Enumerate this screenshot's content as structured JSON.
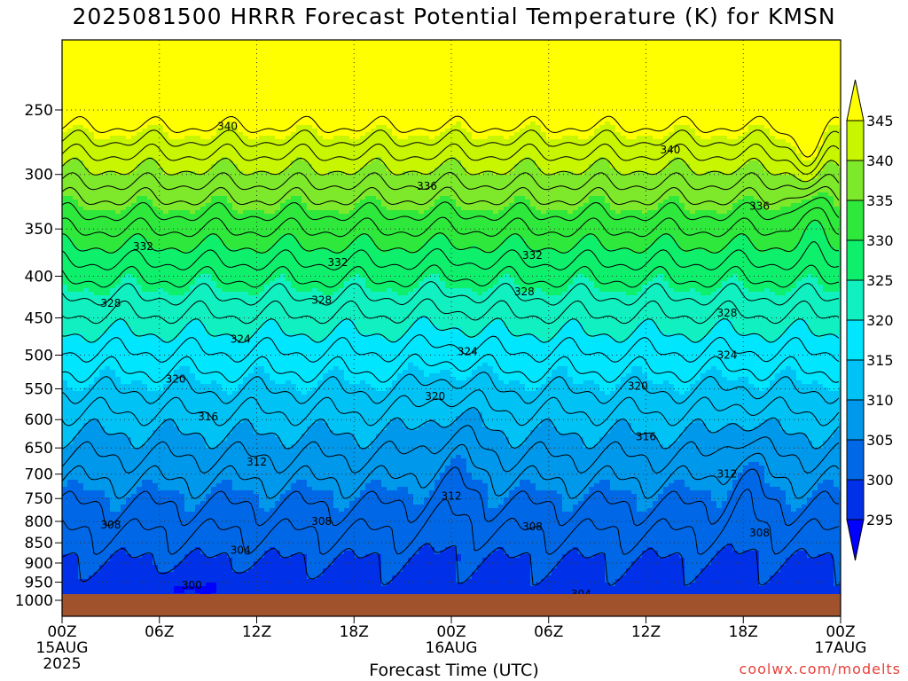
{
  "chart_data": {
    "type": "heatmap",
    "title": "2025081500 HRRR Forecast Potential Temperature (K) for KMSN",
    "xlabel": "Forecast Time (UTC)",
    "ylabel": "",
    "credit": "coolwx.com/modelts",
    "y_axis": {
      "scale": "log",
      "direction": "pressure decreasing upward",
      "range": [
        1000,
        200
      ],
      "ticks": [
        250,
        300,
        350,
        400,
        450,
        500,
        550,
        600,
        650,
        700,
        750,
        800,
        850,
        900,
        950,
        1000
      ]
    },
    "x_axis": {
      "range_hours": [
        0,
        48
      ],
      "ticks": [
        {
          "hour": 0,
          "lines": [
            "00Z",
            "15AUG",
            "2025"
          ]
        },
        {
          "hour": 6,
          "lines": [
            "06Z"
          ]
        },
        {
          "hour": 12,
          "lines": [
            "12Z"
          ]
        },
        {
          "hour": 18,
          "lines": [
            "18Z"
          ]
        },
        {
          "hour": 24,
          "lines": [
            "00Z",
            "16AUG"
          ]
        },
        {
          "hour": 30,
          "lines": [
            "06Z"
          ]
        },
        {
          "hour": 36,
          "lines": [
            "12Z"
          ]
        },
        {
          "hour": 42,
          "lines": [
            "18Z"
          ]
        },
        {
          "hour": 48,
          "lines": [
            "00Z",
            "17AUG"
          ]
        }
      ]
    },
    "colorbar": {
      "labels": [
        345,
        340,
        335,
        330,
        325,
        320,
        315,
        310,
        305,
        300,
        295
      ],
      "bands": [
        {
          "min": 345,
          "color": "#ffff00"
        },
        {
          "min": 340,
          "max": 345,
          "color": "#c8f500"
        },
        {
          "min": 335,
          "max": 340,
          "color": "#7ee82a"
        },
        {
          "min": 330,
          "max": 335,
          "color": "#2ee83c"
        },
        {
          "min": 325,
          "max": 330,
          "color": "#0ef06c"
        },
        {
          "min": 320,
          "max": 325,
          "color": "#10f0c0"
        },
        {
          "min": 315,
          "max": 320,
          "color": "#00e6ff"
        },
        {
          "min": 310,
          "max": 315,
          "color": "#00c2f5"
        },
        {
          "min": 305,
          "max": 310,
          "color": "#0098ea"
        },
        {
          "min": 300,
          "max": 305,
          "color": "#0068e6"
        },
        {
          "min": 295,
          "max": 300,
          "color": "#0030e8"
        },
        {
          "max": 295,
          "color": "#0000ff"
        }
      ]
    },
    "contour_levels": [
      300,
      302,
      304,
      306,
      308,
      310,
      312,
      314,
      316,
      318,
      320,
      322,
      324,
      326,
      328,
      330,
      332,
      334,
      336,
      338,
      340,
      342,
      344,
      346
    ],
    "contour_labels": [
      {
        "value": 340,
        "hour": 10.2,
        "p": 262
      },
      {
        "value": 340,
        "hour": 37.5,
        "p": 280
      },
      {
        "value": 336,
        "hour": 22.5,
        "p": 310
      },
      {
        "value": 336,
        "hour": 43.0,
        "p": 328
      },
      {
        "value": 332,
        "hour": 5.0,
        "p": 368
      },
      {
        "value": 332,
        "hour": 17.0,
        "p": 385
      },
      {
        "value": 332,
        "hour": 29.0,
        "p": 377
      },
      {
        "value": 328,
        "hour": 3.0,
        "p": 432
      },
      {
        "value": 328,
        "hour": 16.0,
        "p": 428
      },
      {
        "value": 328,
        "hour": 28.5,
        "p": 418
      },
      {
        "value": 328,
        "hour": 41.0,
        "p": 444
      },
      {
        "value": 324,
        "hour": 11.0,
        "p": 478
      },
      {
        "value": 324,
        "hour": 25.0,
        "p": 495
      },
      {
        "value": 324,
        "hour": 41.0,
        "p": 500
      },
      {
        "value": 320,
        "hour": 7.0,
        "p": 535
      },
      {
        "value": 320,
        "hour": 23.0,
        "p": 562
      },
      {
        "value": 320,
        "hour": 35.5,
        "p": 546
      },
      {
        "value": 316,
        "hour": 9.0,
        "p": 595
      },
      {
        "value": 316,
        "hour": 36.0,
        "p": 630
      },
      {
        "value": 312,
        "hour": 12.0,
        "p": 676
      },
      {
        "value": 312,
        "hour": 41.0,
        "p": 700
      },
      {
        "value": 312,
        "hour": 24.0,
        "p": 745
      },
      {
        "value": 308,
        "hour": 3.0,
        "p": 808
      },
      {
        "value": 308,
        "hour": 16.0,
        "p": 800
      },
      {
        "value": 308,
        "hour": 29.0,
        "p": 812
      },
      {
        "value": 308,
        "hour": 43.0,
        "p": 827
      },
      {
        "value": 304,
        "hour": 11.0,
        "p": 868
      },
      {
        "value": 304,
        "hour": 32.0,
        "p": 982
      },
      {
        "value": 300,
        "hour": 8.0,
        "p": 958
      }
    ]
  }
}
